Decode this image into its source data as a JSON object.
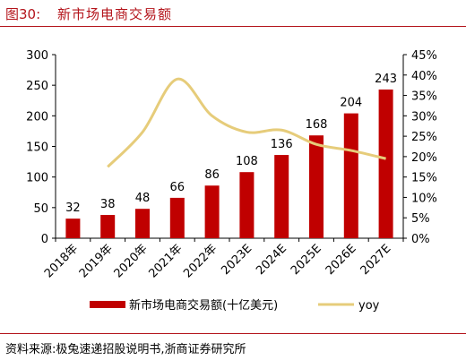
{
  "header": {
    "figure_label": "图30:",
    "title": "新市场电商交易额"
  },
  "footer": {
    "source": "资料来源:极兔速递招股说明书,浙商证券研究所"
  },
  "colors": {
    "bar": "#c00000",
    "line": "#e6cc7a",
    "accent": "#b4141b"
  },
  "chart_data": {
    "type": "bar",
    "categories": [
      "2018年",
      "2019年",
      "2020年",
      "2021年",
      "2022年",
      "2023E",
      "2024E",
      "2025E",
      "2026E",
      "2027E"
    ],
    "series": [
      {
        "name": "新市场电商交易额(十亿美元)",
        "type": "bar",
        "axis": "left",
        "values": [
          32,
          38,
          48,
          66,
          86,
          108,
          136,
          168,
          204,
          243
        ],
        "data_labels": [
          "32",
          "38",
          "48",
          "66",
          "86",
          "108",
          "136",
          "168",
          "204",
          "243"
        ]
      },
      {
        "name": "yoy",
        "type": "line",
        "axis": "right",
        "values": [
          null,
          17.5,
          26,
          39,
          30,
          26,
          26.5,
          23,
          21.5,
          19.5
        ]
      }
    ],
    "left_axis": {
      "ylim": [
        0,
        300
      ],
      "ticks": [
        "0",
        "50",
        "100",
        "150",
        "200",
        "250",
        "300"
      ]
    },
    "right_axis": {
      "ylim": [
        0,
        45
      ],
      "ticks": [
        "0%",
        "5%",
        "10%",
        "15%",
        "20%",
        "25%",
        "30%",
        "35%",
        "40%",
        "45%"
      ]
    },
    "grid": false,
    "legend_position": "bottom"
  }
}
